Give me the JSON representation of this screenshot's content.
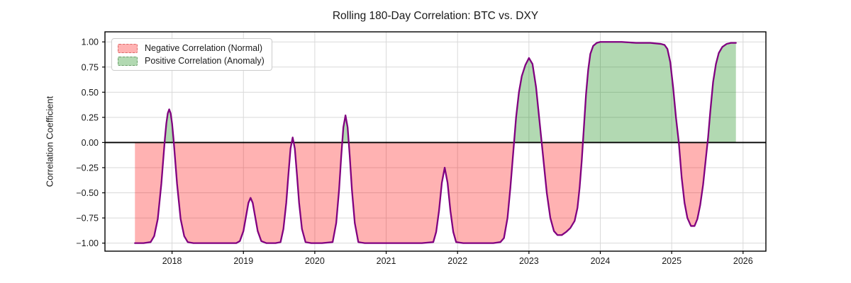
{
  "figure": {
    "title": "Rolling 180-Day Correlation: BTC vs. DXY",
    "ylabel": "Correlation Coefficient"
  },
  "legend": {
    "items": [
      {
        "label": "Negative Correlation (Normal)",
        "fill": "rgba(255,0,0,0.3)",
        "edge": "rgba(214,96,96,0.9)"
      },
      {
        "label": "Positive Correlation (Anomaly)",
        "fill": "rgba(0,128,0,0.3)",
        "edge": "rgba(96,150,96,0.9)"
      }
    ]
  },
  "colors": {
    "line": "#800080",
    "negative_fill": "rgba(255,0,0,0.3)",
    "positive_fill": "rgba(0,128,0,0.3)",
    "grid": "#d9d9d9",
    "spine": "#000000",
    "zero_line": "#000000",
    "tick_label": "#1a1a1a",
    "background": "#ffffff"
  },
  "chart_data": {
    "type": "area",
    "title": "Rolling 180-Day Correlation: BTC vs. DXY",
    "xlabel": "",
    "ylabel": "Correlation Coefficient",
    "xlim": [
      2017.06,
      2026.32
    ],
    "ylim": [
      -1.08,
      1.1
    ],
    "grid": true,
    "zero_line": true,
    "legend_position": "upper-left",
    "x_ticks": [
      2018,
      2019,
      2020,
      2021,
      2022,
      2023,
      2024,
      2025,
      2026
    ],
    "x_tick_labels": [
      "2018",
      "2019",
      "2020",
      "2021",
      "2022",
      "2023",
      "2024",
      "2025",
      "2026"
    ],
    "y_ticks": [
      1.0,
      0.75,
      0.5,
      0.25,
      0.0,
      -0.25,
      -0.5,
      -0.75,
      -1.0
    ],
    "y_tick_labels": [
      "1.00",
      "0.75",
      "0.50",
      "0.25",
      "0.00",
      "−0.25",
      "−0.50",
      "−0.75",
      "−1.00"
    ],
    "series": [
      {
        "name": "rolling-180d-correlation",
        "color": "#800080",
        "fill_negative_label": "Negative Correlation (Normal)",
        "fill_positive_label": "Positive Correlation (Anomaly)",
        "points": [
          [
            2017.48,
            -1.0
          ],
          [
            2017.6,
            -1.0
          ],
          [
            2017.7,
            -0.99
          ],
          [
            2017.75,
            -0.93
          ],
          [
            2017.8,
            -0.76
          ],
          [
            2017.85,
            -0.41
          ],
          [
            2017.88,
            -0.14
          ],
          [
            2017.9,
            0.04
          ],
          [
            2017.92,
            0.19
          ],
          [
            2017.94,
            0.29
          ],
          [
            2017.96,
            0.33
          ],
          [
            2017.98,
            0.29
          ],
          [
            2018.0,
            0.19
          ],
          [
            2018.02,
            0.04
          ],
          [
            2018.04,
            -0.14
          ],
          [
            2018.07,
            -0.41
          ],
          [
            2018.12,
            -0.76
          ],
          [
            2018.17,
            -0.93
          ],
          [
            2018.22,
            -0.99
          ],
          [
            2018.3,
            -1.0
          ],
          [
            2018.5,
            -1.0
          ],
          [
            2018.7,
            -1.0
          ],
          [
            2018.9,
            -1.0
          ],
          [
            2018.95,
            -0.98
          ],
          [
            2019.0,
            -0.88
          ],
          [
            2019.04,
            -0.72
          ],
          [
            2019.07,
            -0.6
          ],
          [
            2019.1,
            -0.55
          ],
          [
            2019.13,
            -0.6
          ],
          [
            2019.16,
            -0.72
          ],
          [
            2019.2,
            -0.88
          ],
          [
            2019.25,
            -0.98
          ],
          [
            2019.32,
            -1.0
          ],
          [
            2019.45,
            -1.0
          ],
          [
            2019.52,
            -0.99
          ],
          [
            2019.56,
            -0.86
          ],
          [
            2019.6,
            -0.6
          ],
          [
            2019.63,
            -0.32
          ],
          [
            2019.66,
            -0.06
          ],
          [
            2019.69,
            0.05
          ],
          [
            2019.72,
            -0.06
          ],
          [
            2019.75,
            -0.32
          ],
          [
            2019.78,
            -0.6
          ],
          [
            2019.82,
            -0.86
          ],
          [
            2019.87,
            -0.99
          ],
          [
            2019.95,
            -1.0
          ],
          [
            2020.1,
            -1.0
          ],
          [
            2020.25,
            -0.99
          ],
          [
            2020.3,
            -0.8
          ],
          [
            2020.34,
            -0.47
          ],
          [
            2020.37,
            -0.14
          ],
          [
            2020.4,
            0.15
          ],
          [
            2020.43,
            0.27
          ],
          [
            2020.46,
            0.15
          ],
          [
            2020.49,
            -0.14
          ],
          [
            2020.52,
            -0.47
          ],
          [
            2020.56,
            -0.8
          ],
          [
            2020.61,
            -0.99
          ],
          [
            2020.7,
            -1.0
          ],
          [
            2020.9,
            -1.0
          ],
          [
            2021.2,
            -1.0
          ],
          [
            2021.5,
            -1.0
          ],
          [
            2021.66,
            -0.99
          ],
          [
            2021.7,
            -0.89
          ],
          [
            2021.74,
            -0.68
          ],
          [
            2021.78,
            -0.4
          ],
          [
            2021.82,
            -0.25
          ],
          [
            2021.86,
            -0.4
          ],
          [
            2021.9,
            -0.68
          ],
          [
            2021.94,
            -0.89
          ],
          [
            2021.98,
            -0.99
          ],
          [
            2022.08,
            -1.0
          ],
          [
            2022.3,
            -1.0
          ],
          [
            2022.5,
            -1.0
          ],
          [
            2022.6,
            -0.99
          ],
          [
            2022.65,
            -0.95
          ],
          [
            2022.7,
            -0.75
          ],
          [
            2022.74,
            -0.45
          ],
          [
            2022.78,
            -0.1
          ],
          [
            2022.82,
            0.25
          ],
          [
            2022.86,
            0.5
          ],
          [
            2022.9,
            0.66
          ],
          [
            2022.95,
            0.77
          ],
          [
            2023.0,
            0.84
          ],
          [
            2023.05,
            0.78
          ],
          [
            2023.1,
            0.55
          ],
          [
            2023.15,
            0.2
          ],
          [
            2023.2,
            -0.15
          ],
          [
            2023.25,
            -0.5
          ],
          [
            2023.3,
            -0.75
          ],
          [
            2023.35,
            -0.88
          ],
          [
            2023.4,
            -0.92
          ],
          [
            2023.46,
            -0.92
          ],
          [
            2023.52,
            -0.89
          ],
          [
            2023.58,
            -0.85
          ],
          [
            2023.64,
            -0.78
          ],
          [
            2023.68,
            -0.65
          ],
          [
            2023.71,
            -0.45
          ],
          [
            2023.74,
            -0.18
          ],
          [
            2023.77,
            0.15
          ],
          [
            2023.8,
            0.48
          ],
          [
            2023.83,
            0.72
          ],
          [
            2023.86,
            0.88
          ],
          [
            2023.9,
            0.96
          ],
          [
            2023.95,
            0.99
          ],
          [
            2024.0,
            1.0
          ],
          [
            2024.15,
            1.0
          ],
          [
            2024.3,
            1.0
          ],
          [
            2024.5,
            0.99
          ],
          [
            2024.7,
            0.99
          ],
          [
            2024.85,
            0.98
          ],
          [
            2024.9,
            0.97
          ],
          [
            2024.94,
            0.93
          ],
          [
            2024.98,
            0.8
          ],
          [
            2025.02,
            0.55
          ],
          [
            2025.06,
            0.25
          ],
          [
            2025.1,
            0.0
          ],
          [
            2025.14,
            -0.35
          ],
          [
            2025.18,
            -0.6
          ],
          [
            2025.22,
            -0.75
          ],
          [
            2025.27,
            -0.83
          ],
          [
            2025.32,
            -0.83
          ],
          [
            2025.36,
            -0.76
          ],
          [
            2025.4,
            -0.62
          ],
          [
            2025.44,
            -0.42
          ],
          [
            2025.48,
            -0.15
          ],
          [
            2025.51,
            0.05
          ],
          [
            2025.54,
            0.3
          ],
          [
            2025.58,
            0.6
          ],
          [
            2025.62,
            0.78
          ],
          [
            2025.66,
            0.89
          ],
          [
            2025.71,
            0.95
          ],
          [
            2025.77,
            0.98
          ],
          [
            2025.83,
            0.99
          ],
          [
            2025.9,
            0.99
          ]
        ]
      }
    ]
  }
}
